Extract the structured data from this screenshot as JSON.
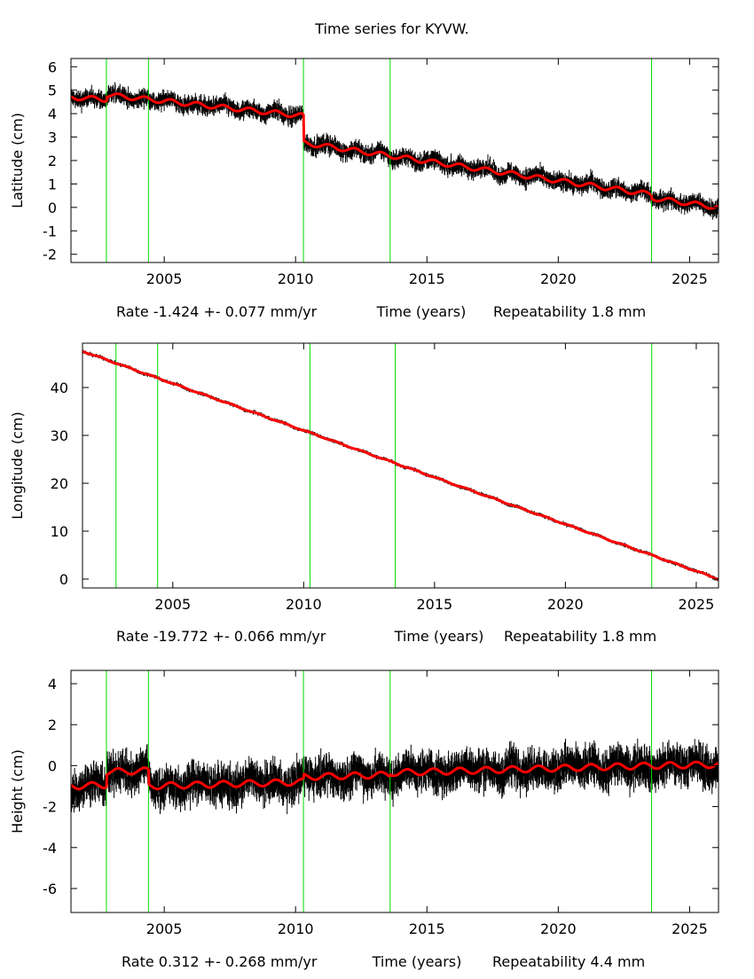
{
  "title": "Time series for KYVW.",
  "chart_data": [
    {
      "type": "scatter",
      "ylabel": "Latitude (cm)",
      "xlabel": "Time (years)",
      "rate_text": "Rate -1.424 +- 0.077 mm/yr",
      "repeatability_text": "Repeatability 1.8 mm",
      "xlim": [
        2001.45,
        2026.1
      ],
      "ylim": [
        -2.35,
        6.35
      ],
      "xticks": [
        2005,
        2010,
        2015,
        2020,
        2025
      ],
      "yticks": [
        -2,
        -1,
        0,
        1,
        2,
        3,
        4,
        5,
        6
      ],
      "breaks": [
        2002.8,
        2004.4,
        2010.3,
        2013.6,
        2023.55
      ],
      "model_segments": [
        {
          "from": 2001.45,
          "to": 2002.8,
          "start": 4.7,
          "end": 4.6
        },
        {
          "from": 2002.8,
          "to": 2010.3,
          "start": 4.8,
          "end": 3.9
        },
        {
          "from": 2010.3,
          "to": 2023.55,
          "start": 2.75,
          "end": 0.55
        },
        {
          "from": 2023.55,
          "to": 2026.1,
          "start": 0.4,
          "end": 0.0
        }
      ],
      "annual_amplitude": 0.1,
      "scatter": 0.3
    },
    {
      "type": "scatter",
      "ylabel": "Longitude (cm)",
      "xlabel": "Time (years)",
      "rate_text": "Rate -19.772 +- 0.066 mm/yr",
      "repeatability_text": "Repeatability 1.8 mm",
      "xlim": [
        2001.55,
        2025.85
      ],
      "ylim": [
        -1.85,
        49.26
      ],
      "xticks": [
        2005,
        2010,
        2015,
        2020,
        2025
      ],
      "yticks": [
        0,
        10,
        20,
        30,
        40
      ],
      "breaks": [
        2002.83,
        2004.42,
        2010.24,
        2013.5,
        2023.3
      ],
      "model_segments": [
        {
          "from": 2001.55,
          "to": 2025.85,
          "start": 47.6,
          "end": 0.0
        }
      ],
      "annual_amplitude": 0.1,
      "scatter": 0.3
    },
    {
      "type": "scatter",
      "ylabel": "Height (cm)",
      "xlabel": "Time (years)",
      "rate_text": "Rate 0.312 +- 0.268 mm/yr",
      "repeatability_text": "Repeatability 4.4 mm",
      "xlim": [
        2001.45,
        2026.1
      ],
      "ylim": [
        -7.17,
        4.65
      ],
      "xticks": [
        2005,
        2010,
        2015,
        2020,
        2025
      ],
      "yticks": [
        -6,
        -4,
        -2,
        0,
        2,
        4
      ],
      "breaks": [
        2002.8,
        2004.4,
        2010.3,
        2013.6,
        2023.55
      ],
      "model_segments": [
        {
          "from": 2001.45,
          "to": 2002.8,
          "start": -1.0,
          "end": -0.95
        },
        {
          "from": 2002.8,
          "to": 2004.4,
          "start": -0.3,
          "end": -0.25
        },
        {
          "from": 2004.4,
          "to": 2010.3,
          "start": -1.0,
          "end": -0.8
        },
        {
          "from": 2010.3,
          "to": 2013.6,
          "start": -0.55,
          "end": -0.45
        },
        {
          "from": 2013.6,
          "to": 2023.55,
          "start": -0.35,
          "end": 0.0
        },
        {
          "from": 2023.55,
          "to": 2026.1,
          "start": 0.0,
          "end": 0.05
        }
      ],
      "annual_amplitude": 0.15,
      "scatter": 0.75
    }
  ],
  "colors": {
    "data": "#000000",
    "model": "#ff0000",
    "breaks": "#00dd00",
    "axes": "#000000"
  }
}
